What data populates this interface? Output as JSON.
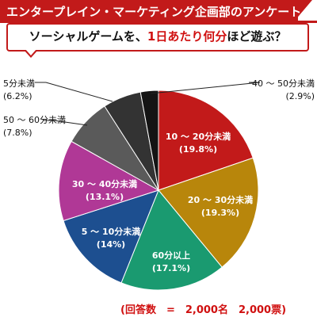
{
  "header": {
    "title": "エンタープレイン・マーケティング企画部のアンケート"
  },
  "question": {
    "prefix": "ソーシャルゲームを、",
    "highlight": "1日あたり何分",
    "suffix": "ほど遊ぶ？"
  },
  "chart_data": {
    "type": "pie",
    "start": "top",
    "direction": "clockwise",
    "slices": [
      {
        "label": "10 ～ 20分未満",
        "value": 19.8,
        "display": "(19.8%)",
        "color": "#c21a1a"
      },
      {
        "label": "20 ～ 30分未満",
        "value": 19.3,
        "display": "(19.3%)",
        "color": "#b8860b"
      },
      {
        "label": "60分以上",
        "value": 17.1,
        "display": "(17.1%)",
        "color": "#1a9a70"
      },
      {
        "label": "5 ～ 10分未満",
        "value": 14,
        "display": "(14%)",
        "color": "#1d4f90"
      },
      {
        "label": "30 ～ 40分未満",
        "value": 13.1,
        "display": "(13.1%)",
        "color": "#b03896"
      },
      {
        "label": "50 ～ 60分未満",
        "value": 7.8,
        "display": "(7.8%)",
        "color": "#5a5a5a"
      },
      {
        "label": "5分未満",
        "value": 6.2,
        "display": "(6.2%)",
        "color": "#333333"
      },
      {
        "label": "40 ～ 50分未満",
        "value": 2.9,
        "display": "(2.9%)",
        "color": "#141414"
      }
    ]
  },
  "footer": {
    "text": "(回答数　=　2,000名　2,000票)"
  }
}
